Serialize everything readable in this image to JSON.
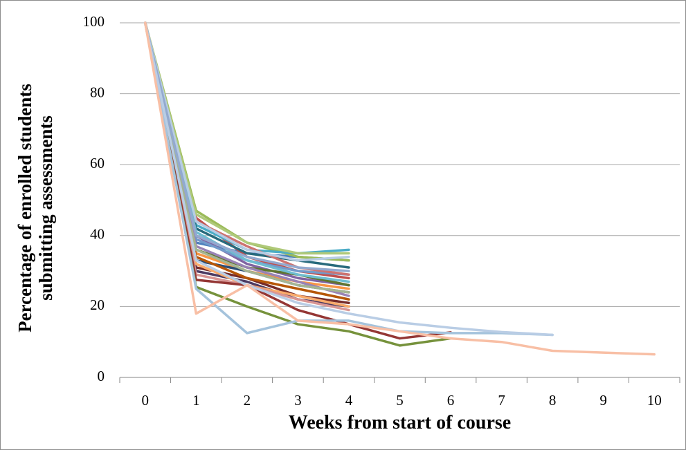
{
  "chart_data": {
    "type": "line",
    "x_label": "Weeks from start of course",
    "y_label": "Percentage of enrolled students submitting assessments",
    "categories": [
      0,
      1,
      2,
      3,
      4,
      5,
      6,
      7,
      8,
      9,
      10
    ],
    "ylim": [
      0,
      100
    ],
    "yticks": [
      0,
      20,
      40,
      60,
      80,
      100
    ],
    "grid": true,
    "series": [
      {
        "color": "#4F81BD",
        "values": [
          100,
          38,
          35,
          34,
          33,
          null,
          null,
          null,
          null,
          null,
          null
        ]
      },
      {
        "color": "#C0504D",
        "values": [
          100,
          45,
          34,
          30,
          28,
          null,
          null,
          null,
          null,
          null,
          null
        ]
      },
      {
        "color": "#9BBB59",
        "values": [
          100,
          47,
          38,
          34,
          33,
          null,
          null,
          null,
          null,
          null,
          null
        ]
      },
      {
        "color": "#8064A2",
        "values": [
          100,
          40,
          32,
          28,
          26,
          null,
          null,
          null,
          null,
          null,
          null
        ]
      },
      {
        "color": "#4BACC6",
        "values": [
          100,
          43,
          36,
          35,
          36,
          null,
          null,
          null,
          null,
          null,
          null
        ]
      },
      {
        "color": "#F79646",
        "values": [
          100,
          35,
          30,
          27,
          25,
          null,
          null,
          null,
          null,
          null,
          null
        ]
      },
      {
        "color": "#2C4D75",
        "values": [
          100,
          33,
          30,
          26,
          24,
          null,
          null,
          null,
          null,
          null,
          null
        ]
      },
      {
        "color": "#772C2A",
        "values": [
          100,
          31,
          28,
          23,
          21,
          null,
          null,
          null,
          null,
          null,
          null
        ]
      },
      {
        "color": "#5F7530",
        "values": [
          100,
          36,
          31,
          29,
          26,
          null,
          null,
          null,
          null,
          null,
          null
        ]
      },
      {
        "color": "#4D3B62",
        "values": [
          100,
          30,
          27,
          22,
          20,
          null,
          null,
          null,
          null,
          null,
          null
        ]
      },
      {
        "color": "#276A7C",
        "values": [
          100,
          42,
          35,
          33,
          31,
          null,
          null,
          null,
          null,
          null,
          null
        ]
      },
      {
        "color": "#B65708",
        "values": [
          100,
          34,
          28,
          25,
          22,
          null,
          null,
          null,
          null,
          null,
          null
        ]
      },
      {
        "color": "#729ACA",
        "values": [
          100,
          39,
          33,
          30,
          29,
          null,
          null,
          null,
          null,
          null,
          null
        ]
      },
      {
        "color": "#CD7371",
        "values": [
          100,
          44,
          37,
          31,
          29,
          null,
          null,
          null,
          null,
          null,
          null
        ]
      },
      {
        "color": "#AFC97A",
        "values": [
          100,
          46,
          38,
          35,
          35,
          null,
          null,
          null,
          null,
          null,
          null
        ]
      },
      {
        "color": "#9983B5",
        "values": [
          100,
          37,
          31,
          27,
          23,
          null,
          null,
          null,
          null,
          null,
          null
        ]
      },
      {
        "color": "#6FBDD1",
        "values": [
          100,
          41,
          33,
          29,
          27,
          null,
          null,
          null,
          null,
          null,
          null
        ]
      },
      {
        "color": "#F9AB6B",
        "values": [
          100,
          32,
          26,
          23,
          20,
          null,
          null,
          null,
          null,
          null,
          null
        ]
      },
      {
        "color": "#A5B592",
        "values": [
          100,
          36,
          30,
          26,
          24,
          null,
          null,
          null,
          null,
          null,
          null
        ]
      },
      {
        "color": "#D99694",
        "values": [
          100,
          29,
          26,
          22,
          19,
          null,
          null,
          null,
          null,
          null,
          null
        ]
      },
      {
        "color": "#B7CCE4",
        "values": [
          100,
          44,
          36,
          33,
          34,
          null,
          null,
          null,
          null,
          null,
          null
        ]
      },
      {
        "color": "#93A9CF",
        "values": [
          100,
          40,
          34,
          31,
          30,
          null,
          null,
          null,
          null,
          null,
          null
        ]
      },
      {
        "color": "#943634",
        "values": [
          100,
          27.5,
          26,
          19,
          15,
          11,
          12.7,
          null,
          null,
          null,
          null
        ]
      },
      {
        "color": "#76923C",
        "values": [
          100,
          25.5,
          20,
          15,
          13,
          9,
          11,
          null,
          null,
          null,
          null
        ]
      },
      {
        "color": "#A5C3DC",
        "values": [
          100,
          25,
          12.5,
          16,
          16,
          13,
          12.5,
          12.5,
          12,
          null,
          null
        ]
      },
      {
        "color": "#B9CDE5",
        "values": [
          100,
          33,
          26,
          21,
          18,
          15.5,
          14,
          12.8,
          12,
          null,
          null
        ]
      },
      {
        "color": "#F8BFA5",
        "values": [
          100,
          18,
          26,
          16,
          15,
          13,
          11,
          10,
          7.5,
          7,
          6.5
        ]
      }
    ]
  }
}
